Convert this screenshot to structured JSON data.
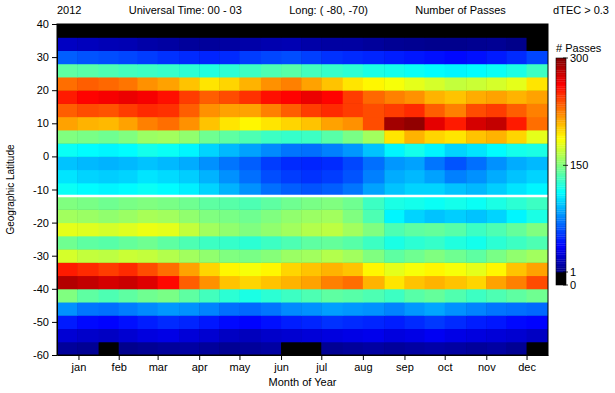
{
  "chart_data": {
    "type": "heatmap",
    "title": [
      "2012",
      "Universal Time: 00 - 03",
      "Long: ( -80, -70)",
      "Number of Passes",
      "dTEC > 0.3"
    ],
    "x_label": "Month of Year",
    "y_label": "Geographic Latitude",
    "xlim": [
      0,
      366
    ],
    "xticks": [
      {
        "value": 16,
        "label": "jan"
      },
      {
        "value": 46,
        "label": "feb"
      },
      {
        "value": 75,
        "label": "mar"
      },
      {
        "value": 106,
        "label": "apr"
      },
      {
        "value": 136,
        "label": "may"
      },
      {
        "value": 167,
        "label": "jun"
      },
      {
        "value": 197,
        "label": "jul"
      },
      {
        "value": 228,
        "label": "aug"
      },
      {
        "value": 259,
        "label": "sep"
      },
      {
        "value": 289,
        "label": "oct"
      },
      {
        "value": 320,
        "label": "nov"
      },
      {
        "value": 350,
        "label": "dec"
      }
    ],
    "ylim": [
      -60,
      40
    ],
    "yticks": [
      -60,
      -50,
      -40,
      -30,
      -20,
      -10,
      0,
      10,
      20,
      30,
      40
    ],
    "hline": -12,
    "x_edges": [
      0,
      15,
      31,
      46,
      60,
      75,
      91,
      106,
      121,
      136,
      152,
      167,
      182,
      197,
      213,
      228,
      244,
      259,
      274,
      289,
      305,
      320,
      335,
      350,
      366
    ],
    "y_edges": [
      -60,
      -56,
      -52,
      -48,
      -44,
      -40,
      -36,
      -32,
      -28,
      -24,
      -20,
      -16,
      -12,
      -8,
      -4,
      0,
      4,
      8,
      12,
      16,
      20,
      24,
      28,
      32,
      36,
      40
    ],
    "z": [
      [
        8,
        6,
        0,
        4,
        6,
        8,
        10,
        8,
        6,
        8,
        10,
        0,
        0,
        6,
        8,
        10,
        8,
        10,
        12,
        10,
        8,
        10,
        6,
        0
      ],
      [
        25,
        22,
        20,
        24,
        28,
        30,
        26,
        24,
        20,
        18,
        22,
        24,
        26,
        28,
        30,
        32,
        28,
        30,
        34,
        30,
        28,
        26,
        24,
        20
      ],
      [
        45,
        40,
        38,
        42,
        46,
        50,
        48,
        44,
        40,
        38,
        42,
        46,
        48,
        52,
        50,
        48,
        46,
        50,
        54,
        50,
        46,
        44,
        40,
        38
      ],
      [
        80,
        72,
        70,
        74,
        78,
        82,
        80,
        76,
        70,
        68,
        72,
        78,
        80,
        84,
        82,
        80,
        76,
        82,
        86,
        80,
        76,
        72,
        70,
        68
      ],
      [
        150,
        140,
        135,
        140,
        145,
        148,
        140,
        132,
        125,
        120,
        125,
        130,
        135,
        140,
        138,
        135,
        130,
        138,
        142,
        136,
        130,
        135,
        140,
        145
      ],
      [
        285,
        280,
        275,
        278,
        272,
        260,
        235,
        220,
        205,
        200,
        205,
        210,
        215,
        225,
        230,
        210,
        195,
        205,
        210,
        205,
        200,
        215,
        225,
        240
      ],
      [
        255,
        250,
        245,
        250,
        240,
        230,
        215,
        200,
        190,
        185,
        190,
        200,
        205,
        210,
        205,
        190,
        180,
        185,
        190,
        185,
        180,
        190,
        205,
        215
      ],
      [
        175,
        170,
        168,
        172,
        170,
        165,
        160,
        155,
        150,
        148,
        152,
        158,
        160,
        165,
        160,
        150,
        140,
        145,
        150,
        145,
        140,
        148,
        155,
        160
      ],
      [
        145,
        140,
        138,
        142,
        145,
        140,
        135,
        130,
        128,
        125,
        130,
        135,
        140,
        142,
        138,
        130,
        120,
        125,
        128,
        122,
        118,
        125,
        130,
        135
      ],
      [
        180,
        178,
        175,
        178,
        182,
        180,
        170,
        160,
        155,
        150,
        155,
        160,
        165,
        168,
        160,
        150,
        135,
        140,
        142,
        138,
        130,
        135,
        142,
        150
      ],
      [
        160,
        158,
        155,
        158,
        162,
        160,
        155,
        150,
        148,
        145,
        150,
        155,
        158,
        160,
        150,
        135,
        110,
        100,
        95,
        98,
        95,
        100,
        110,
        120
      ],
      [
        150,
        148,
        145,
        148,
        150,
        148,
        145,
        140,
        138,
        135,
        140,
        145,
        148,
        150,
        145,
        130,
        120,
        118,
        115,
        118,
        115,
        120,
        125,
        130
      ],
      [
        115,
        112,
        110,
        112,
        115,
        112,
        108,
        100,
        90,
        80,
        70,
        65,
        62,
        65,
        72,
        85,
        95,
        100,
        100,
        95,
        92,
        98,
        105,
        110
      ],
      [
        105,
        100,
        98,
        100,
        105,
        102,
        98,
        90,
        80,
        70,
        60,
        55,
        52,
        55,
        62,
        75,
        88,
        92,
        85,
        75,
        80,
        88,
        95,
        100
      ],
      [
        95,
        92,
        90,
        92,
        95,
        92,
        88,
        80,
        72,
        65,
        55,
        50,
        48,
        50,
        58,
        70,
        82,
        85,
        72,
        62,
        70,
        80,
        88,
        92
      ],
      [
        115,
        112,
        110,
        112,
        118,
        115,
        110,
        100,
        92,
        85,
        78,
        72,
        70,
        75,
        82,
        95,
        110,
        118,
        110,
        100,
        105,
        112,
        118,
        120
      ],
      [
        150,
        148,
        145,
        150,
        158,
        160,
        155,
        145,
        140,
        135,
        130,
        128,
        130,
        138,
        148,
        160,
        195,
        210,
        200,
        195,
        205,
        210,
        200,
        180
      ],
      [
        215,
        210,
        208,
        215,
        225,
        230,
        220,
        205,
        195,
        190,
        195,
        200,
        205,
        215,
        220,
        240,
        290,
        295,
        270,
        255,
        275,
        280,
        255,
        230
      ],
      [
        235,
        240,
        238,
        245,
        250,
        248,
        235,
        220,
        215,
        215,
        225,
        235,
        245,
        250,
        245,
        240,
        245,
        250,
        235,
        225,
        240,
        245,
        235,
        225
      ],
      [
        255,
        262,
        265,
        268,
        265,
        258,
        245,
        235,
        240,
        248,
        258,
        262,
        268,
        262,
        245,
        232,
        225,
        220,
        210,
        205,
        212,
        215,
        210,
        215
      ],
      [
        230,
        235,
        232,
        228,
        220,
        215,
        205,
        195,
        200,
        210,
        220,
        225,
        215,
        205,
        195,
        190,
        185,
        180,
        175,
        170,
        172,
        175,
        180,
        195
      ],
      [
        140,
        138,
        135,
        132,
        130,
        128,
        125,
        122,
        125,
        130,
        135,
        138,
        132,
        128,
        125,
        120,
        118,
        115,
        112,
        110,
        112,
        115,
        120,
        130
      ],
      [
        65,
        62,
        60,
        58,
        55,
        52,
        50,
        48,
        50,
        55,
        58,
        60,
        56,
        52,
        50,
        48,
        46,
        44,
        42,
        40,
        42,
        45,
        50,
        58
      ],
      [
        20,
        18,
        16,
        15,
        12,
        10,
        8,
        8,
        10,
        12,
        14,
        15,
        12,
        10,
        10,
        8,
        6,
        5,
        4,
        4,
        5,
        6,
        3,
        0
      ],
      [
        0,
        0,
        0,
        0,
        0,
        0,
        0,
        0,
        0,
        0,
        0,
        0,
        0,
        0,
        0,
        0,
        0,
        0,
        0,
        0,
        0,
        0,
        0,
        0
      ]
    ],
    "colorbar": {
      "title": "# Passes",
      "range": [
        0,
        300
      ],
      "ticks": [
        0,
        1,
        150,
        300
      ]
    }
  }
}
